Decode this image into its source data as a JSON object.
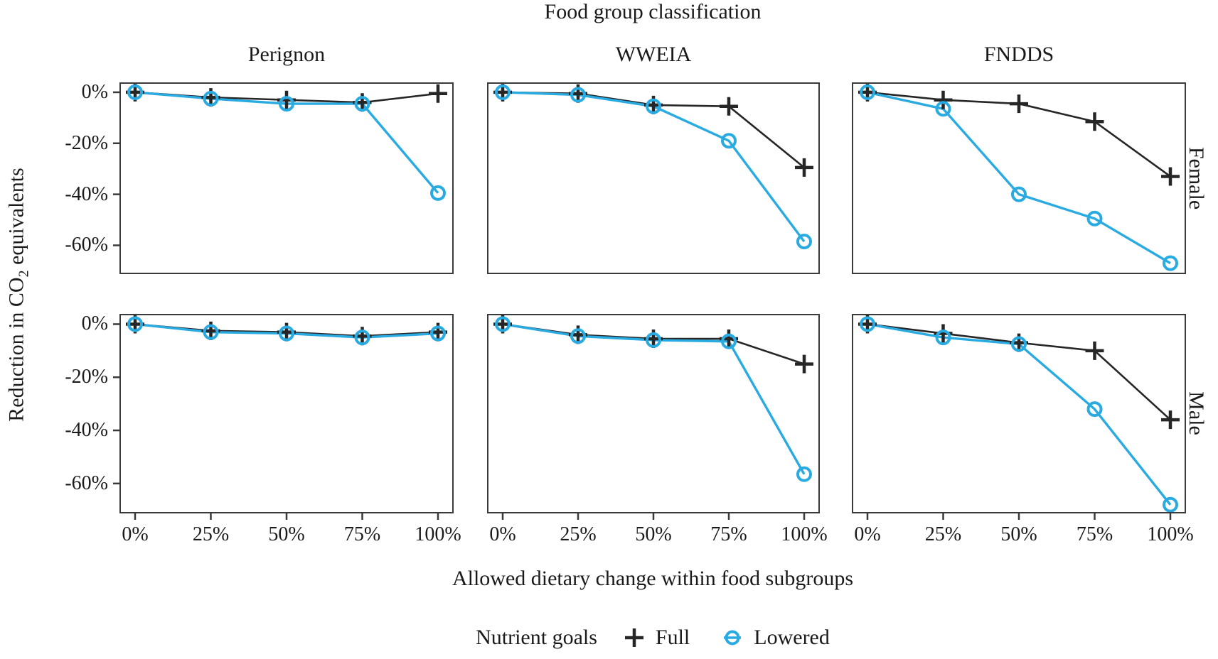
{
  "chart_data": {
    "type": "line",
    "title": "Food group classification",
    "xlabel": "Allowed dietary change within food subgroups",
    "ylabel": "Reduction in CO2 equivalents",
    "ylabel_parts": {
      "pre": "Reduction in CO",
      "sub": "2",
      "post": " equivalents"
    },
    "columns": [
      "Perignon",
      "WWEIA",
      "FNDDS"
    ],
    "rows": [
      "Female",
      "Male"
    ],
    "x_categories": [
      "0%",
      "25%",
      "50%",
      "75%",
      "100%"
    ],
    "x_values": [
      0,
      25,
      50,
      75,
      100
    ],
    "y_tick_labels": [
      "0%",
      "-20%",
      "-40%",
      "-60%"
    ],
    "y_tick_values": [
      0,
      -20,
      -40,
      -60
    ],
    "ylim": [
      3.6,
      -71
    ],
    "grid": "off",
    "legend_position": "bottom",
    "series_names": [
      "Full",
      "Lowered"
    ],
    "colors": {
      "full": "#262626",
      "lowered": "#29abe2",
      "frame": "#3a3a3a"
    },
    "panels": [
      {
        "column": "Perignon",
        "row": "Female",
        "full": [
          0,
          -2,
          -3,
          -4,
          -0.5
        ],
        "lowered": [
          0,
          -2.5,
          -4.5,
          -4.5,
          -39.5
        ]
      },
      {
        "column": "WWEIA",
        "row": "Female",
        "full": [
          0,
          -0.5,
          -5,
          -5.5,
          -29.5
        ],
        "lowered": [
          0,
          -1,
          -5.5,
          -19,
          -58.5
        ]
      },
      {
        "column": "FNDDS",
        "row": "Female",
        "full": [
          0,
          -3,
          -4.5,
          -11.5,
          -33
        ],
        "lowered": [
          0,
          -6.5,
          -40,
          -49.5,
          -67
        ]
      },
      {
        "column": "Perignon",
        "row": "Male",
        "full": [
          0,
          -2.5,
          -3,
          -4.5,
          -3
        ],
        "lowered": [
          0,
          -3,
          -3.5,
          -5,
          -3.5
        ]
      },
      {
        "column": "WWEIA",
        "row": "Male",
        "full": [
          0,
          -4,
          -5.5,
          -5.5,
          -15
        ],
        "lowered": [
          0,
          -4.5,
          -6,
          -6.5,
          -56.5
        ]
      },
      {
        "column": "FNDDS",
        "row": "Male",
        "full": [
          0,
          -3.5,
          -7,
          -10,
          -36
        ],
        "lowered": [
          0,
          -5,
          -7.5,
          -32,
          -68
        ]
      }
    ],
    "legend": {
      "title": "Nutrient goals",
      "items": [
        {
          "label": "Full",
          "marker": "plus"
        },
        {
          "label": "Lowered",
          "marker": "open-circle"
        }
      ]
    }
  }
}
